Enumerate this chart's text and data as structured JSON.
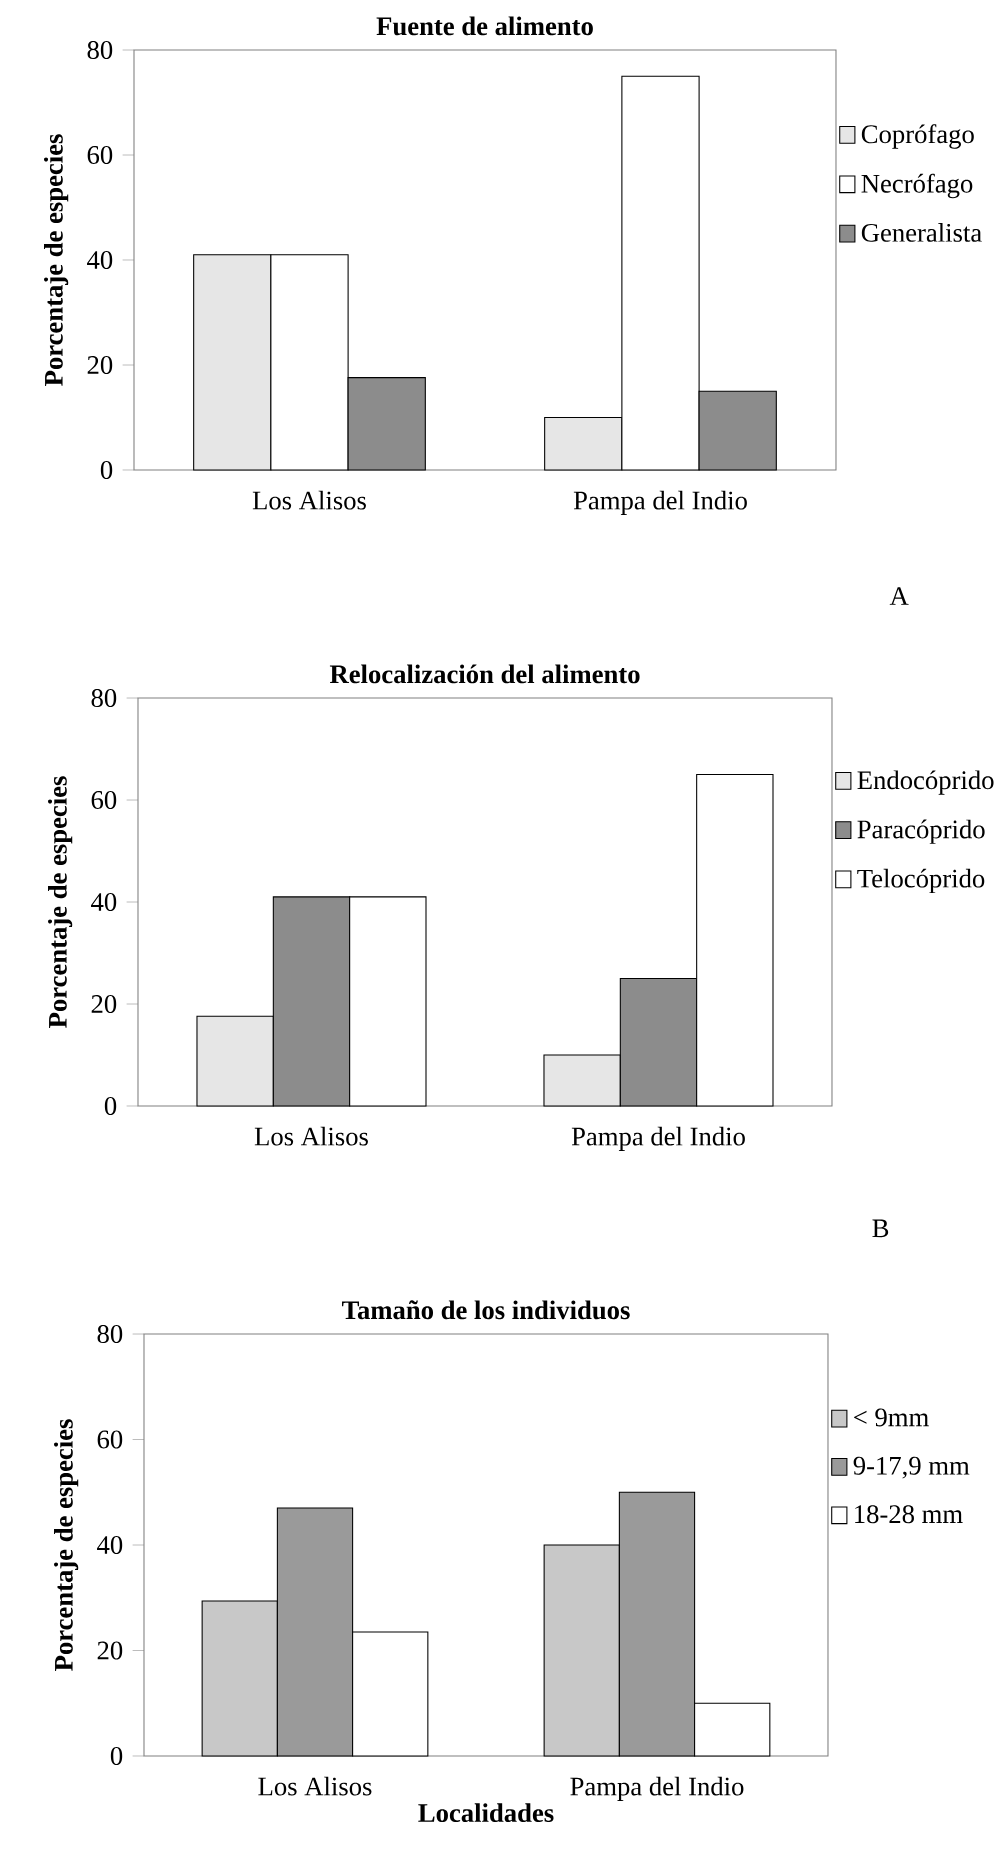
{
  "chart_data": [
    {
      "type": "bar",
      "title": "Fuente de alimento",
      "ylabel": "Porcentaje de especies",
      "categories": [
        "Los Alisos",
        "Pampa del Indio"
      ],
      "series": [
        {
          "name": "Coprófago",
          "color": "#e6e6e6",
          "values": [
            41,
            10
          ]
        },
        {
          "name": "Necrófago",
          "color": "#ffffff",
          "values": [
            41,
            75
          ]
        },
        {
          "name": "Generalista",
          "color": "#8c8c8c",
          "values": [
            17.6,
            15
          ]
        }
      ],
      "ylim": [
        0,
        80
      ],
      "yticks": [
        0,
        20,
        40,
        60,
        80
      ],
      "legend": "right",
      "annotations": [
        "A"
      ]
    },
    {
      "type": "bar",
      "title": "Relocalización del alimento",
      "ylabel": "Porcentaje de especies",
      "categories": [
        "Los Alisos",
        "Pampa del Indio"
      ],
      "series": [
        {
          "name": "Endocóprido",
          "color": "#e6e6e6",
          "values": [
            17.6,
            10
          ]
        },
        {
          "name": "Paracóprido",
          "color": "#8c8c8c",
          "values": [
            41,
            25
          ]
        },
        {
          "name": "Telocóprido",
          "color": "#ffffff",
          "values": [
            41,
            65
          ]
        }
      ],
      "ylim": [
        0,
        80
      ],
      "yticks": [
        0,
        20,
        40,
        60,
        80
      ],
      "legend": "right",
      "annotations": [
        "B"
      ]
    },
    {
      "type": "bar",
      "title": "Tamaño de los individuos",
      "xlabel": "Localidades",
      "ylabel": "Porcentaje de especies",
      "categories": [
        "Los Alisos",
        "Pampa del Indio"
      ],
      "series": [
        {
          "name": "< 9mm",
          "color": "#c8c8c8",
          "values": [
            29.4,
            40
          ]
        },
        {
          "name": "9-17,9 mm",
          "color": "#9a9a9a",
          "values": [
            47,
            50
          ]
        },
        {
          "name": "18-28 mm",
          "color": "#ffffff",
          "values": [
            23.5,
            10
          ]
        }
      ],
      "ylim": [
        0,
        80
      ],
      "yticks": [
        0,
        20,
        40,
        60,
        80
      ],
      "legend": "right"
    }
  ]
}
